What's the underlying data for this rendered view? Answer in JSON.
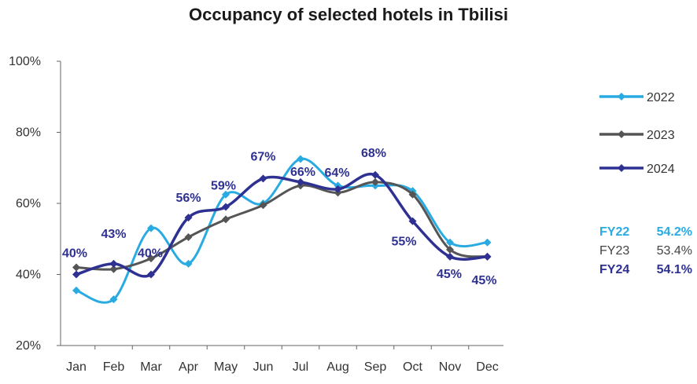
{
  "chart_data": {
    "type": "line",
    "title": "Occupancy of selected hotels in Tbilisi",
    "xlabel": "",
    "ylabel": "",
    "categories": [
      "Jan",
      "Feb",
      "Mar",
      "Apr",
      "May",
      "Jun",
      "Jul",
      "Aug",
      "Sep",
      "Oct",
      "Nov",
      "Dec"
    ],
    "ylim": [
      20,
      100
    ],
    "yticks": [
      20,
      40,
      60,
      80,
      100
    ],
    "ytick_labels": [
      "20%",
      "40%",
      "60%",
      "80%",
      "100%"
    ],
    "grid": false,
    "legend_position": "right",
    "series": [
      {
        "name": "2022",
        "color": "#29abe2",
        "bold": false,
        "values": [
          35.5,
          33,
          53,
          43,
          62.5,
          60,
          72.5,
          65,
          65,
          63.5,
          49,
          49
        ]
      },
      {
        "name": "2023",
        "color": "#555555",
        "bold": false,
        "values": [
          42,
          41.5,
          44.5,
          50.5,
          55.5,
          59.5,
          65,
          63,
          66,
          62.5,
          47,
          45
        ]
      },
      {
        "name": "2024",
        "color": "#2e3192",
        "bold": true,
        "values": [
          40,
          43,
          40,
          56,
          59,
          67,
          66,
          64,
          68,
          55,
          45,
          45
        ]
      }
    ],
    "data_labels": [
      {
        "series": "2024",
        "index": 0,
        "text": "40%"
      },
      {
        "series": "2024",
        "index": 1,
        "text": "43%"
      },
      {
        "series": "2024",
        "index": 2,
        "text": "40%"
      },
      {
        "series": "2024",
        "index": 3,
        "text": "56%"
      },
      {
        "series": "2024",
        "index": 4,
        "text": "59%"
      },
      {
        "series": "2024",
        "index": 5,
        "text": "67%"
      },
      {
        "series": "2024",
        "index": 6,
        "text": "66%"
      },
      {
        "series": "2024",
        "index": 7,
        "text": "64%"
      },
      {
        "series": "2024",
        "index": 8,
        "text": "68%"
      },
      {
        "series": "2024",
        "index": 9,
        "text": "55%"
      },
      {
        "series": "2024",
        "index": 10,
        "text": "45%"
      },
      {
        "series": "2024",
        "index": 11,
        "text": "45%"
      }
    ],
    "annotations": [
      {
        "label": "FY22",
        "value": "54.2%",
        "color": "#29abe2",
        "bold": true
      },
      {
        "label": "FY23",
        "value": "53.4%",
        "color": "#444444",
        "bold": false
      },
      {
        "label": "FY24",
        "value": "54.1%",
        "color": "#2e3192",
        "bold": true
      }
    ]
  }
}
